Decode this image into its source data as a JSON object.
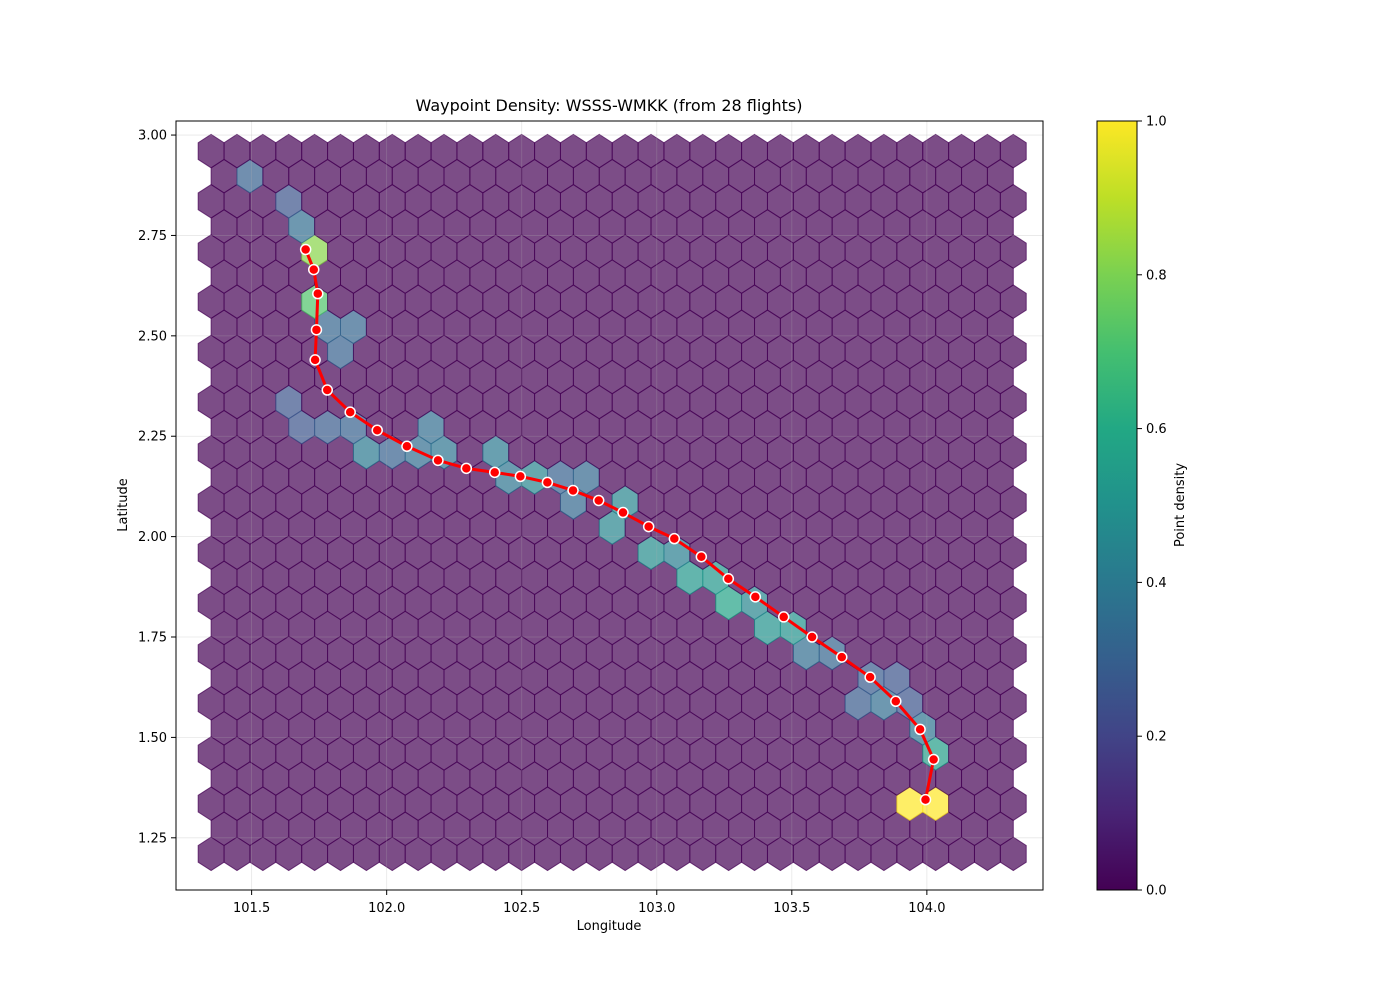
{
  "chart_data": {
    "type": "hexbin",
    "title": "Waypoint Density: WSSS-WMKK (from 28 flights)",
    "xlabel": "Longitude",
    "ylabel": "Latitude",
    "xlim": [
      101.22,
      104.43
    ],
    "ylim": [
      1.12,
      3.035
    ],
    "xticks": [
      101.5,
      102.0,
      102.5,
      103.0,
      103.5,
      104.0
    ],
    "xtick_labels": [
      "101.5",
      "102.0",
      "102.5",
      "103.0",
      "103.5",
      "104.0"
    ],
    "yticks": [
      1.25,
      1.5,
      1.75,
      2.0,
      2.25,
      2.5,
      2.75,
      3.0
    ],
    "ytick_labels": [
      "1.25",
      "1.50",
      "1.75",
      "2.00",
      "2.25",
      "2.50",
      "2.75",
      "3.00"
    ],
    "grid": true,
    "hexbin": {
      "x_range": [
        101.35,
        104.32
      ],
      "y_range": [
        1.21,
        2.96
      ],
      "columns": 32,
      "rows": 29,
      "alpha": 0.7,
      "background_density": 0.0,
      "hotspots": [
        {
          "x": 103.99,
          "y": 1.335,
          "density": 1.0
        },
        {
          "x": 101.72,
          "y": 2.705,
          "density": 0.82
        },
        {
          "x": 101.75,
          "y": 2.61,
          "density": 0.72
        },
        {
          "x": 104.05,
          "y": 1.46,
          "density": 0.55
        },
        {
          "x": 103.27,
          "y": 1.865,
          "density": 0.58
        },
        {
          "x": 103.16,
          "y": 1.895,
          "density": 0.52
        },
        {
          "x": 102.97,
          "y": 1.985,
          "density": 0.48
        },
        {
          "x": 103.46,
          "y": 1.775,
          "density": 0.5
        },
        {
          "x": 103.37,
          "y": 1.8,
          "density": 0.45
        },
        {
          "x": 102.86,
          "y": 2.05,
          "density": 0.45
        },
        {
          "x": 102.57,
          "y": 2.17,
          "density": 0.45
        },
        {
          "x": 102.5,
          "y": 2.17,
          "density": 0.38
        },
        {
          "x": 102.36,
          "y": 2.19,
          "density": 0.4
        },
        {
          "x": 102.25,
          "y": 2.19,
          "density": 0.38
        },
        {
          "x": 103.07,
          "y": 1.955,
          "density": 0.42
        },
        {
          "x": 101.94,
          "y": 2.235,
          "density": 0.4
        },
        {
          "x": 102.15,
          "y": 2.235,
          "density": 0.35
        },
        {
          "x": 103.99,
          "y": 1.52,
          "density": 0.38
        },
        {
          "x": 103.85,
          "y": 1.585,
          "density": 0.35
        },
        {
          "x": 103.64,
          "y": 1.68,
          "density": 0.32
        },
        {
          "x": 103.55,
          "y": 1.73,
          "density": 0.35
        },
        {
          "x": 102.73,
          "y": 2.11,
          "density": 0.33
        },
        {
          "x": 101.69,
          "y": 2.735,
          "density": 0.35
        },
        {
          "x": 101.83,
          "y": 2.52,
          "density": 0.32
        },
        {
          "x": 101.82,
          "y": 2.45,
          "density": 0.3
        },
        {
          "x": 101.65,
          "y": 2.265,
          "density": 0.25
        },
        {
          "x": 101.86,
          "y": 2.265,
          "density": 0.3
        },
        {
          "x": 101.76,
          "y": 2.265,
          "density": 0.28
        },
        {
          "x": 101.63,
          "y": 2.33,
          "density": 0.25
        },
        {
          "x": 101.6,
          "y": 2.825,
          "density": 0.25
        },
        {
          "x": 101.51,
          "y": 2.92,
          "density": 0.3
        },
        {
          "x": 103.93,
          "y": 1.62,
          "density": 0.25
        },
        {
          "x": 103.76,
          "y": 1.615,
          "density": 0.28
        },
        {
          "x": 102.66,
          "y": 2.14,
          "density": 0.3
        },
        {
          "x": 102.03,
          "y": 2.2,
          "density": 0.3
        }
      ]
    },
    "series": [
      {
        "type": "line",
        "color": "#ff0000",
        "marker": "circle",
        "x": [
          101.7,
          101.73,
          101.745,
          101.74,
          101.735,
          101.78,
          101.865,
          101.965,
          102.075,
          102.19,
          102.295,
          102.4,
          102.495,
          102.595,
          102.69,
          102.785,
          102.875,
          102.97,
          103.065,
          103.165,
          103.265,
          103.365,
          103.47,
          103.575,
          103.685,
          103.79,
          103.885,
          103.975,
          104.025,
          103.995
        ],
        "y": [
          2.715,
          2.665,
          2.605,
          2.515,
          2.44,
          2.365,
          2.31,
          2.265,
          2.225,
          2.19,
          2.17,
          2.16,
          2.15,
          2.135,
          2.115,
          2.09,
          2.06,
          2.025,
          1.995,
          1.95,
          1.895,
          1.85,
          1.8,
          1.75,
          1.7,
          1.65,
          1.59,
          1.52,
          1.445,
          1.345
        ]
      }
    ],
    "colorbar": {
      "label": "Point density",
      "range": [
        0.0,
        1.0
      ],
      "colormap": "viridis",
      "ticks": [
        0.0,
        0.2,
        0.4,
        0.6,
        0.8,
        1.0
      ],
      "tick_labels": [
        "0.0",
        "0.2",
        "0.4",
        "0.6",
        "0.8",
        "1.0"
      ]
    }
  }
}
